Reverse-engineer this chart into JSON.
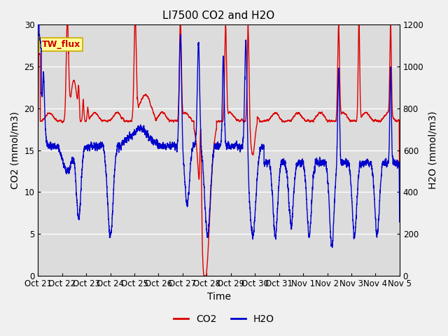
{
  "title": "LI7500 CO2 and H2O",
  "xlabel": "Time",
  "ylabel_left": "CO2 (mmol/m3)",
  "ylabel_right": "H2O (mmol/m3)",
  "ylim_left": [
    0,
    30
  ],
  "ylim_right": [
    0,
    1200
  ],
  "xtick_labels": [
    "Oct 21",
    "Oct 22",
    "Oct 23",
    "Oct 24",
    "Oct 25",
    "Oct 26",
    "Oct 27",
    "Oct 28",
    "Oct 29",
    "Oct 30",
    "Oct 31",
    "Nov 1",
    "Nov 2",
    "Nov 3",
    "Nov 4",
    "Nov 5"
  ],
  "legend_labels": [
    "CO2",
    "H2O"
  ],
  "co2_color": "#DD0000",
  "h2o_color": "#0000CC",
  "background_color": "#DCDCDC",
  "outer_background": "#F0F0F0",
  "annotation_text": "TW_flux",
  "annotation_color": "#CC0000",
  "annotation_bg": "#FFFF99",
  "annotation_border": "#CCAA00",
  "title_fontsize": 11,
  "axis_fontsize": 10,
  "tick_fontsize": 8.5,
  "legend_fontsize": 10,
  "linewidth_co2": 1.0,
  "linewidth_h2o": 1.0
}
